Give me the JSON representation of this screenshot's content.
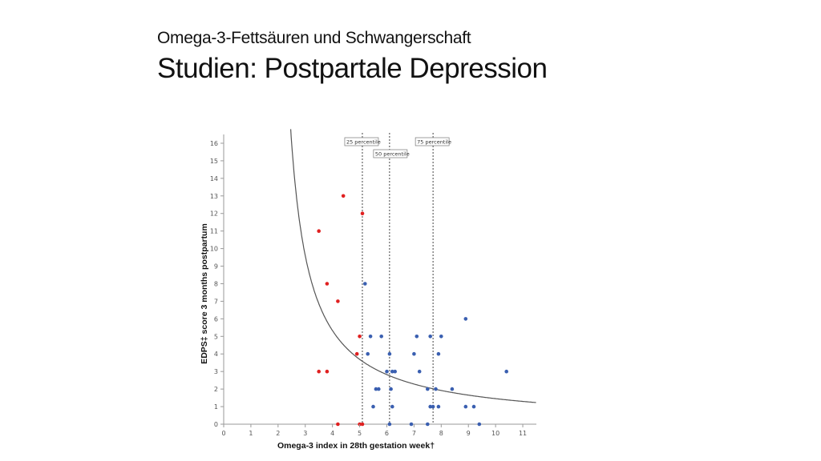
{
  "slide": {
    "subtitle": "Omega-3-Fettsäuren und Schwangerschaft",
    "title": "Studien: Postpartale Depression"
  },
  "chart_data": {
    "type": "scatter",
    "xlabel": "Omega-3 index in 28th gestation week†",
    "ylabel": "EDPS‡ score 3 months postpartum",
    "xlim": [
      0,
      11.5
    ],
    "ylim": [
      0,
      16.5
    ],
    "xticks": [
      "0",
      "1",
      "2",
      "3",
      "4",
      "5",
      "6",
      "7",
      "8",
      "9",
      "10",
      "11"
    ],
    "yticks": [
      "0",
      "1",
      "2",
      "3",
      "4",
      "5",
      "6",
      "7",
      "8",
      "9",
      "10",
      "11",
      "12",
      "13",
      "14",
      "15",
      "16"
    ],
    "grid": false,
    "percentile_lines": [
      {
        "label": "25 percentile",
        "x": 5.1
      },
      {
        "label": "50 percentile",
        "x": 6.1
      },
      {
        "label": "75 percentile",
        "x": 7.7
      }
    ],
    "curve": {
      "form": "y = a / (x - b)",
      "a": 12,
      "b": 1.75
    },
    "series": [
      {
        "color": "#e02020",
        "points": [
          [
            3.5,
            11
          ],
          [
            4.4,
            13
          ],
          [
            5.1,
            12
          ],
          [
            3.8,
            8
          ],
          [
            4.2,
            7
          ],
          [
            5.0,
            5
          ],
          [
            4.9,
            4
          ],
          [
            3.5,
            3
          ],
          [
            3.8,
            3
          ],
          [
            4.2,
            0
          ],
          [
            5.0,
            0
          ],
          [
            5.1,
            0
          ]
        ]
      },
      {
        "color": "#3a5fb0",
        "points": [
          [
            5.2,
            8
          ],
          [
            5.3,
            4
          ],
          [
            5.4,
            5
          ],
          [
            5.8,
            5
          ],
          [
            5.5,
            1
          ],
          [
            5.6,
            2
          ],
          [
            5.7,
            2
          ],
          [
            6.0,
            3
          ],
          [
            6.1,
            4
          ],
          [
            6.2,
            3
          ],
          [
            6.3,
            3
          ],
          [
            6.15,
            2
          ],
          [
            6.2,
            1
          ],
          [
            6.1,
            0
          ],
          [
            7.0,
            4
          ],
          [
            7.1,
            5
          ],
          [
            7.2,
            3
          ],
          [
            7.5,
            2
          ],
          [
            7.6,
            5
          ],
          [
            7.6,
            1
          ],
          [
            7.7,
            1
          ],
          [
            7.8,
            2
          ],
          [
            7.9,
            4
          ],
          [
            8.0,
            5
          ],
          [
            7.9,
            1
          ],
          [
            8.4,
            2
          ],
          [
            8.9,
            6
          ],
          [
            8.9,
            1
          ],
          [
            9.2,
            1
          ],
          [
            9.4,
            0
          ],
          [
            10.4,
            3
          ],
          [
            6.9,
            0
          ],
          [
            7.5,
            0
          ]
        ]
      }
    ]
  }
}
